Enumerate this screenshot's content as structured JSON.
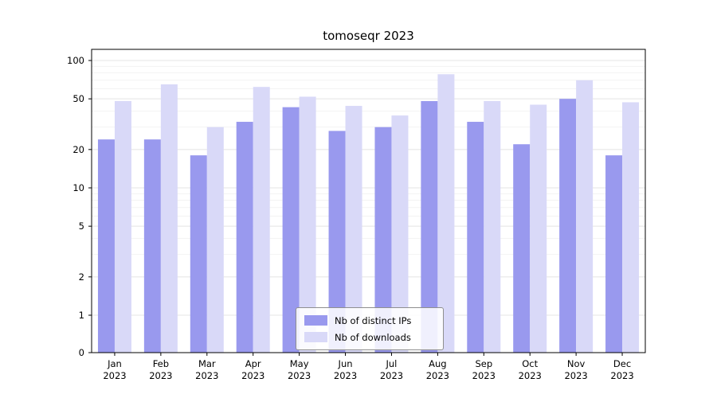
{
  "title": "tomoseqr 2023",
  "colors": {
    "ips": "#9999ee",
    "downloads": "#d9d9f8",
    "grid_major": "#e4e4e4",
    "grid_minor": "#f3f3f3",
    "axis": "#000000"
  },
  "legend": {
    "items": [
      {
        "label": "Nb of distinct IPs",
        "color_key": "ips"
      },
      {
        "label": "Nb of downloads",
        "color_key": "downloads"
      }
    ]
  },
  "chart_data": {
    "type": "bar",
    "scale": "symlog",
    "title": "tomoseqr 2023",
    "categories": [
      "Jan 2023",
      "Feb 2023",
      "Mar 2023",
      "Apr 2023",
      "May 2023",
      "Jun 2023",
      "Jul 2023",
      "Aug 2023",
      "Sep 2023",
      "Oct 2023",
      "Nov 2023",
      "Dec 2023"
    ],
    "series": [
      {
        "name": "Nb of distinct IPs",
        "values": [
          24,
          24,
          18,
          33,
          43,
          28,
          30,
          48,
          33,
          22,
          50,
          18
        ]
      },
      {
        "name": "Nb of downloads",
        "values": [
          48,
          65,
          30,
          62,
          52,
          44,
          37,
          78,
          48,
          45,
          70,
          47
        ]
      }
    ],
    "y_ticks": [
      0,
      1,
      2,
      5,
      10,
      20,
      50,
      100
    ],
    "ylim": [
      0,
      100
    ],
    "xlabel": "",
    "ylabel": "",
    "grid": "on",
    "legend_position": "lower center"
  }
}
